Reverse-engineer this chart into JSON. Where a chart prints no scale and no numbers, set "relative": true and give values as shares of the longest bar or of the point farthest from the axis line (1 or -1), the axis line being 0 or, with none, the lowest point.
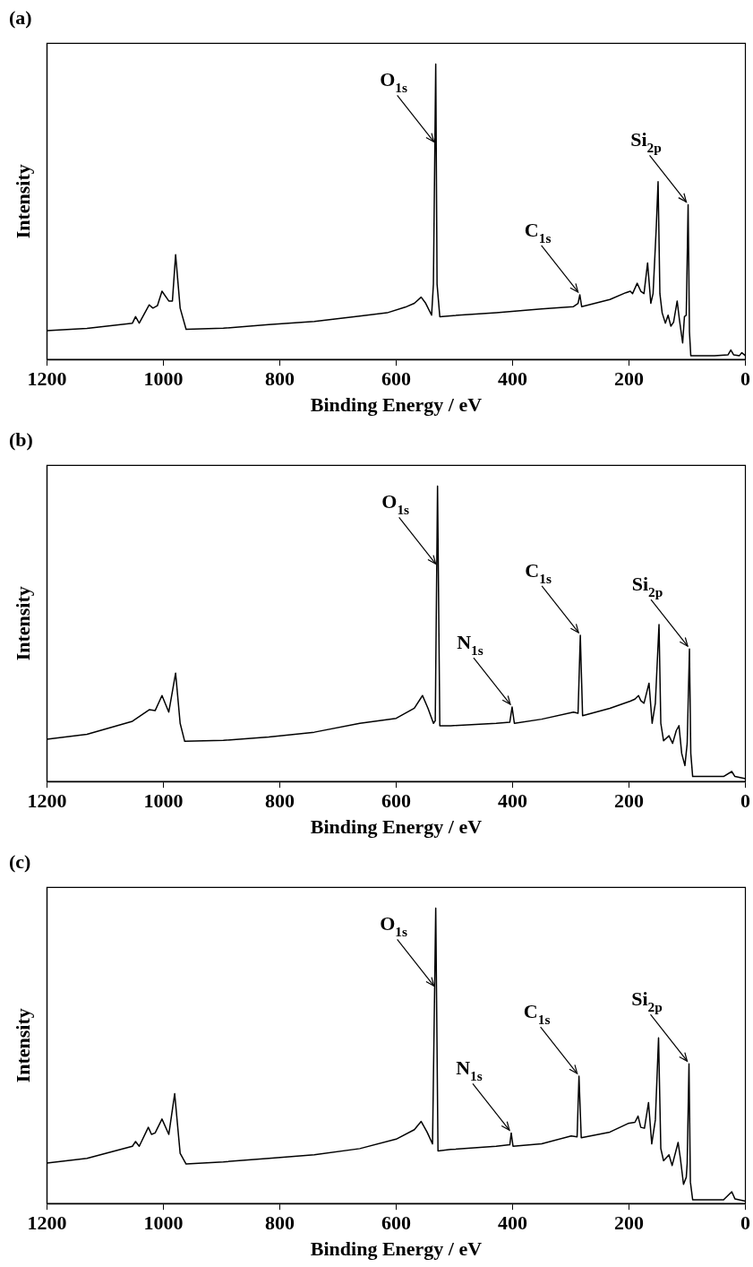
{
  "chart_data": [
    {
      "type": "line",
      "title": "(a)",
      "xlabel": "Binding Energy / eV",
      "ylabel": "Intensity",
      "relative": true,
      "xlim": [
        1200,
        0
      ],
      "xticks": [
        1200,
        1000,
        800,
        600,
        400,
        200,
        0
      ],
      "grid": false,
      "legend": false,
      "marker": "none",
      "line_style": "solid",
      "series": [
        {
          "color": "#000000",
          "x": [
            1200,
            1131.2,
            1053.1,
            1047.7,
            1041.4,
            1024.2,
            1017.9,
            1010.2,
            1002.3,
            990.6,
            984.4,
            978.9,
            971.1,
            960.9,
            896.9,
            818.8,
            740.6,
            662.5,
            615.6,
            584.4,
            568.8,
            557.0,
            549.2,
            539.1,
            536.0,
            532.0,
            529.7,
            525.0,
            506.3,
            428.1,
            350.0,
            295.3,
            287.5,
            284.4,
            281.3,
            232.8,
            205.5,
            197.7,
            193.8,
            185.9,
            179.7,
            174.2,
            168.0,
            162.5,
            158.6,
            153.1,
            150.0,
            146.9,
            143.0,
            137.5,
            132.8,
            128.1,
            123.4,
            117.2,
            113.3,
            107.8,
            104.7,
            101.6,
            98.4,
            96.1,
            93.8,
            53.1,
            29.7,
            25.0,
            20.3,
            10.2,
            6.3,
            0
          ],
          "values": [
            0.098,
            0.105,
            0.123,
            0.145,
            0.123,
            0.185,
            0.174,
            0.182,
            0.231,
            0.198,
            0.198,
            0.355,
            0.174,
            0.102,
            0.106,
            0.118,
            0.129,
            0.147,
            0.158,
            0.177,
            0.19,
            0.211,
            0.19,
            0.15,
            0.255,
            1,
            0.255,
            0.145,
            0.148,
            0.158,
            0.171,
            0.179,
            0.19,
            0.219,
            0.179,
            0.203,
            0.226,
            0.231,
            0.223,
            0.258,
            0.231,
            0.223,
            0.327,
            0.19,
            0.223,
            0.448,
            0.602,
            0.223,
            0.158,
            0.123,
            0.15,
            0.113,
            0.126,
            0.198,
            0.134,
            0.056,
            0.145,
            0.15,
            0.524,
            0.094,
            0.013,
            0.013,
            0.016,
            0.032,
            0.016,
            0.013,
            0.023,
            0.013
          ]
        }
      ],
      "annotations": [
        {
          "text": "O$_{1s}$",
          "x": 532.0,
          "y": 1
        },
        {
          "text": "C$_{1s}$",
          "x": 284.4,
          "y": 0.219
        },
        {
          "text": "Si$_{2p}$",
          "x": 98.4,
          "y": 0.524
        }
      ]
    },
    {
      "type": "line",
      "title": "(b)",
      "xlabel": "Binding Energy / eV",
      "ylabel": "Intensity",
      "relative": true,
      "xlim": [
        1200,
        0
      ],
      "xticks": [
        1200,
        1000,
        800,
        600,
        400,
        200,
        0
      ],
      "grid": false,
      "legend": false,
      "marker": "none",
      "line_style": "solid",
      "series": [
        {
          "color": "#000000",
          "x": [
            1200,
            1131.2,
            1053.1,
            1024.2,
            1014.1,
            1002.3,
            990.6,
            978.9,
            971.1,
            963.3,
            896.9,
            818.8,
            740.6,
            662.5,
            600,
            568.8,
            554.7,
            545.3,
            535.9,
            532.8,
            528.9,
            525.0,
            506.3,
            428.1,
            404.7,
            400.8,
            396.9,
            350,
            295.3,
            287.5,
            283.6,
            279.7,
            232.8,
            197.7,
            189.8,
            183.6,
            179.7,
            174.2,
            165.6,
            160.2,
            154.7,
            148.4,
            145.3,
            140.6,
            131.3,
            125,
            118.8,
            114.1,
            109.4,
            103.9,
            100,
            96.1,
            93.8,
            90.6,
            37.5,
            23.4,
            18,
            0
          ],
          "values": [
            0.143,
            0.16,
            0.204,
            0.243,
            0.24,
            0.291,
            0.235,
            0.367,
            0.197,
            0.136,
            0.139,
            0.151,
            0.167,
            0.197,
            0.214,
            0.248,
            0.291,
            0.248,
            0.197,
            0.206,
            1,
            0.189,
            0.189,
            0.197,
            0.201,
            0.252,
            0.197,
            0.211,
            0.235,
            0.231,
            0.495,
            0.223,
            0.248,
            0.272,
            0.279,
            0.291,
            0.274,
            0.265,
            0.333,
            0.197,
            0.265,
            0.531,
            0.197,
            0.138,
            0.155,
            0.129,
            0.172,
            0.189,
            0.095,
            0.054,
            0.129,
            0.449,
            0.095,
            0.017,
            0.017,
            0.034,
            0.017,
            0.01
          ]
        }
      ],
      "annotations": [
        {
          "text": "O$_{1s}$",
          "x": 528.9,
          "y": 1
        },
        {
          "text": "N$_{1s}$",
          "x": 400.8,
          "y": 0.252
        },
        {
          "text": "C$_{1s}$",
          "x": 283.6,
          "y": 0.495
        },
        {
          "text": "Si$_{2p}$",
          "x": 96.1,
          "y": 0.449
        }
      ]
    },
    {
      "type": "line",
      "title": "(c)",
      "xlabel": "Binding Energy / eV",
      "ylabel": "Intensity",
      "relative": true,
      "xlim": [
        1200,
        0
      ],
      "xticks": [
        1200,
        1000,
        800,
        600,
        400,
        200,
        0
      ],
      "grid": false,
      "legend": false,
      "marker": "none",
      "line_style": "solid",
      "series": [
        {
          "color": "#000000",
          "x": [
            1200,
            1131.2,
            1053.1,
            1047.7,
            1041.4,
            1025.8,
            1020.3,
            1014.1,
            1002.3,
            990.6,
            980.5,
            971.1,
            960.9,
            896.9,
            818.8,
            740.6,
            662.5,
            600,
            568.8,
            557,
            546.9,
            537.5,
            532,
            528.1,
            506.3,
            428.1,
            404.7,
            402.3,
            399.2,
            350,
            299.2,
            289.1,
            285.9,
            282,
            232.8,
            201.6,
            189.8,
            184.4,
            179.7,
            173.4,
            166.4,
            160.9,
            154.7,
            149.2,
            145.3,
            140.6,
            131.3,
            125.8,
            115.6,
            111.7,
            106.3,
            101.6,
            100,
            96.9,
            94.5,
            90.6,
            37.5,
            23.4,
            18,
            0
          ],
          "values": [
            0.137,
            0.153,
            0.194,
            0.21,
            0.194,
            0.258,
            0.234,
            0.239,
            0.286,
            0.234,
            0.372,
            0.17,
            0.134,
            0.141,
            0.153,
            0.165,
            0.186,
            0.218,
            0.25,
            0.278,
            0.242,
            0.202,
            1,
            0.178,
            0.183,
            0.194,
            0.199,
            0.239,
            0.194,
            0.202,
            0.229,
            0.226,
            0.431,
            0.223,
            0.242,
            0.271,
            0.275,
            0.296,
            0.258,
            0.255,
            0.342,
            0.202,
            0.283,
            0.561,
            0.186,
            0.145,
            0.165,
            0.129,
            0.207,
            0.153,
            0.065,
            0.089,
            0.137,
            0.473,
            0.073,
            0.013,
            0.013,
            0.04,
            0.016,
            0.008
          ]
        }
      ],
      "annotations": [
        {
          "text": "O$_{1s}$",
          "x": 532,
          "y": 1
        },
        {
          "text": "N$_{1s}$",
          "x": 402.3,
          "y": 0.239
        },
        {
          "text": "C$_{1s}$",
          "x": 285.9,
          "y": 0.431
        },
        {
          "text": "Si$_{2p}$",
          "x": 96.9,
          "y": 0.473
        }
      ]
    }
  ]
}
